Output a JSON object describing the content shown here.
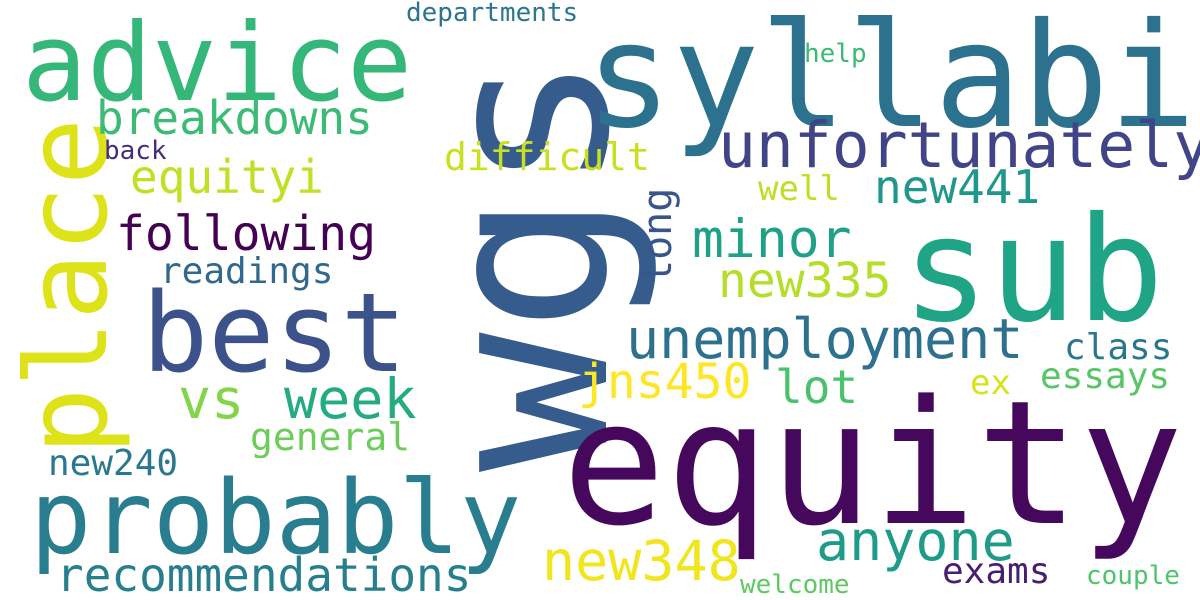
{
  "words": [
    {
      "text": "wgs",
      "color": "#365c8d"
    },
    {
      "text": "equity",
      "color": "#46085c"
    },
    {
      "text": "syllabi",
      "color": "#2c728e"
    },
    {
      "text": "sub",
      "color": "#20a486"
    },
    {
      "text": "advice",
      "color": "#35b779"
    },
    {
      "text": "place",
      "color": "#dde318"
    },
    {
      "text": "best",
      "color": "#3b528b"
    },
    {
      "text": "probably",
      "color": "#287d8e"
    },
    {
      "text": "unfortunately",
      "color": "#414487"
    },
    {
      "text": "unemployment",
      "color": "#2d718e"
    },
    {
      "text": "breakdowns",
      "color": "#3bbb75"
    },
    {
      "text": "equityi",
      "color": "#c2df23"
    },
    {
      "text": "following",
      "color": "#440154"
    },
    {
      "text": "minor",
      "color": "#1fa187"
    },
    {
      "text": "new441",
      "color": "#1f988b"
    },
    {
      "text": "vs",
      "color": "#84d44b"
    },
    {
      "text": "week",
      "color": "#25ab82"
    },
    {
      "text": "anyone",
      "color": "#1e9c89"
    },
    {
      "text": "new348",
      "color": "#f1e51d"
    },
    {
      "text": "recommendations",
      "color": "#277f8e"
    },
    {
      "text": "jns450",
      "color": "#fde725"
    },
    {
      "text": "lot",
      "color": "#4ac16d"
    },
    {
      "text": "new335",
      "color": "#b5de2b"
    },
    {
      "text": "difficult",
      "color": "#c8e020"
    },
    {
      "text": "readings",
      "color": "#31688e"
    },
    {
      "text": "long",
      "color": "#39568c"
    },
    {
      "text": "general",
      "color": "#6ccd5a"
    },
    {
      "text": "new240",
      "color": "#2a788e"
    },
    {
      "text": "class",
      "color": "#2a768e"
    },
    {
      "text": "essays",
      "color": "#56c667"
    },
    {
      "text": "exams",
      "color": "#481f70"
    },
    {
      "text": "ex",
      "color": "#d8e219"
    },
    {
      "text": "well",
      "color": "#bddf26"
    },
    {
      "text": "departments",
      "color": "#2b758e"
    },
    {
      "text": "help",
      "color": "#3aba76"
    },
    {
      "text": "back",
      "color": "#472d7b"
    },
    {
      "text": "welcome",
      "color": "#5ec962"
    },
    {
      "text": "couple",
      "color": "#50c46a"
    }
  ]
}
